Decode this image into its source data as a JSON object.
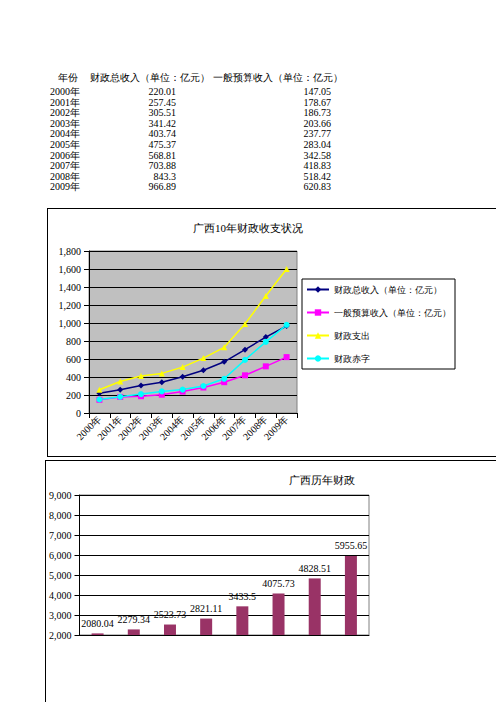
{
  "table": {
    "header": [
      "年份",
      "财政总收入（单位：亿元）",
      "一般预算收入（单位：亿元）"
    ],
    "rows": [
      [
        "2000年",
        "220.01",
        "147.05"
      ],
      [
        "2001年",
        "257.45",
        "178.67"
      ],
      [
        "2002年",
        "305.51",
        "186.73"
      ],
      [
        "2003年",
        "341.42",
        "203.66"
      ],
      [
        "2004年",
        "403.74",
        "237.77"
      ],
      [
        "2005年",
        "475.37",
        "283.04"
      ],
      [
        "2006年",
        "568.81",
        "342.58"
      ],
      [
        "2007年",
        "703.88",
        "418.83"
      ],
      [
        "2008年",
        "843.3",
        "518.42"
      ],
      [
        "2009年",
        "966.89",
        "620.83"
      ]
    ]
  },
  "chart_data": [
    {
      "type": "line",
      "title": "广西10年财政收支状况",
      "categories": [
        "2000年",
        "2001年",
        "2002年",
        "2003年",
        "2004年",
        "2005年",
        "2006年",
        "2007年",
        "2008年",
        "2009年"
      ],
      "series": [
        {
          "name": "财政总收入（单位：亿元）",
          "color": "#000080",
          "marker": "diamond",
          "values": [
            220.01,
            257.45,
            305.51,
            341.42,
            403.74,
            475.37,
            568.81,
            703.88,
            843.3,
            966.89
          ]
        },
        {
          "name": "一般预算收入（单位：亿元）",
          "color": "#ff00ff",
          "marker": "rect",
          "values": [
            147.05,
            178.67,
            186.73,
            203.66,
            237.77,
            283.04,
            342.58,
            418.83,
            518.42,
            620.83
          ]
        },
        {
          "name": "财政支出",
          "color": "#ffff00",
          "marker": "triangle",
          "values": [
            258,
            350,
            410,
            440,
            510,
            610,
            730,
            990,
            1300,
            1600
          ]
        },
        {
          "name": "财政赤字",
          "color": "#00ffff",
          "marker": "circle",
          "values": [
            150,
            180,
            210,
            240,
            260,
            300,
            380,
            590,
            790,
            980
          ]
        }
      ],
      "ylim": [
        0,
        1800
      ],
      "yticks": [
        0,
        200,
        400,
        600,
        800,
        1000,
        1200,
        1400,
        1600,
        1800
      ],
      "grid": true,
      "legend": "right"
    },
    {
      "type": "bar",
      "title": "广西历年财政",
      "categories": [
        null,
        null,
        null,
        null,
        null,
        null,
        null,
        null
      ],
      "values": [
        2080.04,
        2279.34,
        2523.73,
        2821.11,
        3433.5,
        4075.73,
        4828.51,
        5955.65
      ],
      "color": "#993366",
      "ylim": [
        2000,
        9000
      ],
      "yticks": [
        2000,
        3000,
        4000,
        5000,
        6000,
        7000,
        8000,
        9000
      ],
      "grid": true,
      "data_labels": true,
      "tick_labels": "y"
    }
  ]
}
